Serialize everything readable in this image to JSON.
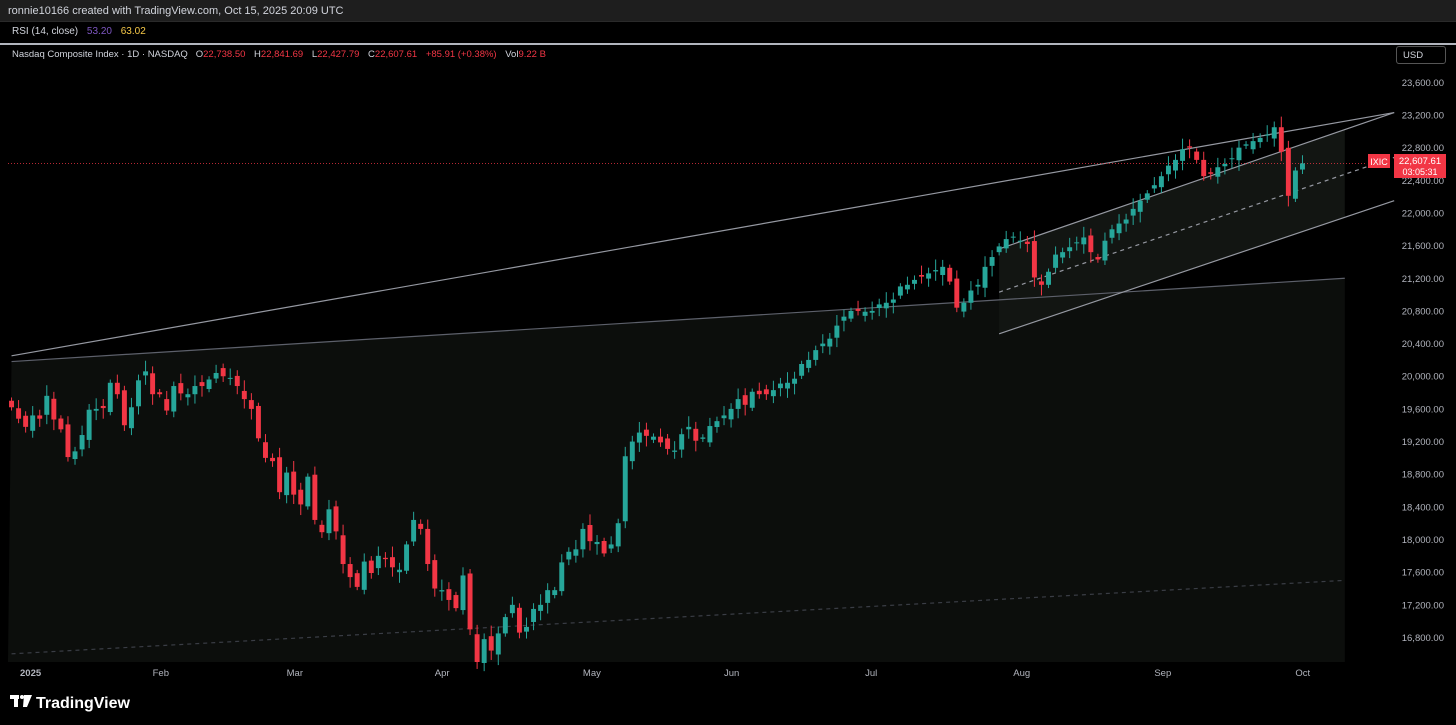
{
  "header": {
    "caption": "ronnie10166 created with TradingView.com, Oct 15, 2025 20:09 UTC"
  },
  "rsi": {
    "label": "RSI (14, close)",
    "value1": "53.20",
    "value2": "63.02",
    "color1": "#7e57c2",
    "color2": "#f7c948"
  },
  "legend": {
    "title": "Nasdaq Composite Index · 1D · NASDAQ",
    "o_label": "O",
    "o_value": "22,738.50",
    "h_label": "H",
    "h_value": "22,841.69",
    "l_label": "L",
    "l_value": "22,427.79",
    "c_label": "C",
    "c_value": "22,607.61",
    "change": "+85.91 (+0.38%)",
    "vol_label": "Vol",
    "vol_value": "9.22 B"
  },
  "currency": "USD",
  "price_tag": {
    "symbol": "IXIC",
    "price": "22,607.61",
    "countdown": "03:05:31"
  },
  "branding": "TradingView",
  "colors": {
    "up": "#26a69a",
    "down": "#f23645",
    "background": "#000000",
    "grid_text": "#b2b5be"
  },
  "chart_data": {
    "type": "candlestick",
    "title": "Nasdaq Composite Index · 1D · NASDAQ",
    "ylim": [
      16500,
      23800
    ],
    "y_ticks": [
      "23,600.00",
      "23,200.00",
      "22,800.00",
      "22,400.00",
      "22,000.00",
      "21,600.00",
      "21,200.00",
      "20,800.00",
      "20,400.00",
      "20,000.00",
      "19,600.00",
      "19,200.00",
      "18,800.00",
      "18,400.00",
      "18,000.00",
      "17,600.00",
      "17,200.00",
      "16,800.00"
    ],
    "x_ticks": [
      {
        "label": "2025",
        "bold": true,
        "index": 0
      },
      {
        "label": "Feb",
        "index": 20
      },
      {
        "label": "Mar",
        "index": 39
      },
      {
        "label": "Apr",
        "index": 60
      },
      {
        "label": "May",
        "index": 81
      },
      {
        "label": "Jun",
        "index": 101
      },
      {
        "label": "Jul",
        "index": 121
      },
      {
        "label": "Aug",
        "index": 142
      },
      {
        "label": "Sep",
        "index": 162
      },
      {
        "label": "Oct",
        "index": 182
      }
    ],
    "current_price": 22607.61,
    "trendlines": [
      {
        "from": [
          0,
          20250
        ],
        "to": [
          196,
          23230
        ],
        "color": "#9598a1",
        "style": "solid"
      },
      {
        "from": [
          0,
          20180
        ],
        "to": [
          189,
          21200
        ],
        "color": "#5d606b",
        "style": "solid"
      },
      {
        "from": [
          0,
          16600
        ],
        "to": [
          189,
          17500
        ],
        "color": "#3a3d45",
        "style": "dashed"
      },
      {
        "from": [
          140,
          21560
        ],
        "to": [
          196,
          23230
        ],
        "color": "#9598a1",
        "style": "solid"
      },
      {
        "from": [
          140,
          20520
        ],
        "to": [
          196,
          22150
        ],
        "color": "#9598a1",
        "style": "solid"
      },
      {
        "from": [
          140,
          21030
        ],
        "to": [
          196,
          22680
        ],
        "color": "#9598a1",
        "style": "dashed"
      }
    ],
    "closes": [
      19620,
      19480,
      19380,
      19520,
      19480,
      19760,
      19470,
      19350,
      19010,
      19080,
      19280,
      19590,
      19600,
      19610,
      19920,
      19780,
      19400,
      19620,
      19950,
      20060,
      19780,
      19780,
      19580,
      19880,
      19790,
      19780,
      19880,
      19880,
      19960,
      20040,
      20000,
      19980,
      19880,
      19720,
      19600,
      19240,
      19000,
      18960,
      18580,
      18820,
      18550,
      18430,
      18770,
      18240,
      18090,
      18370,
      18100,
      17700,
      17540,
      17420,
      17730,
      17590,
      17800,
      17760,
      17660,
      17630,
      17940,
      18240,
      18130,
      17700,
      17400,
      17380,
      17260,
      17160,
      17560,
      16900,
      16500,
      16780,
      16640,
      16850,
      17050,
      17200,
      16860,
      16930,
      17150,
      17200,
      17380,
      17380,
      17720,
      17850,
      17880,
      18130,
      17980,
      17970,
      17830,
      17940,
      18200,
      19020,
      19200,
      19310,
      19270,
      19260,
      19190,
      19110,
      19090,
      19290,
      19380,
      19210,
      19250,
      19390,
      19450,
      19520,
      19600,
      19720,
      19650,
      19810,
      19780,
      19780,
      19830,
      19910,
      19920,
      19970,
      20150,
      20200,
      20320,
      20400,
      20460,
      20620,
      20730,
      20800,
      20800,
      20790,
      20800,
      20880,
      20900,
      20940,
      21100,
      21120,
      21180,
      21220,
      21260,
      21300,
      21340,
      21160,
      20840,
      20900,
      21050,
      21120,
      21340,
      21460,
      21590,
      21680,
      21710,
      21660,
      21620,
      21210,
      21120,
      21280,
      21490,
      21520,
      21580,
      21640,
      21700,
      21520,
      21430,
      21660,
      21800,
      21870,
      21920,
      22050,
      22150,
      22240,
      22340,
      22450,
      22580,
      22650,
      22780,
      22800,
      22650,
      22450,
      22480,
      22560,
      22600,
      22670,
      22800,
      22840,
      22880,
      22920,
      22960,
      23050,
      22750,
      22210,
      22520,
      22607
    ]
  }
}
